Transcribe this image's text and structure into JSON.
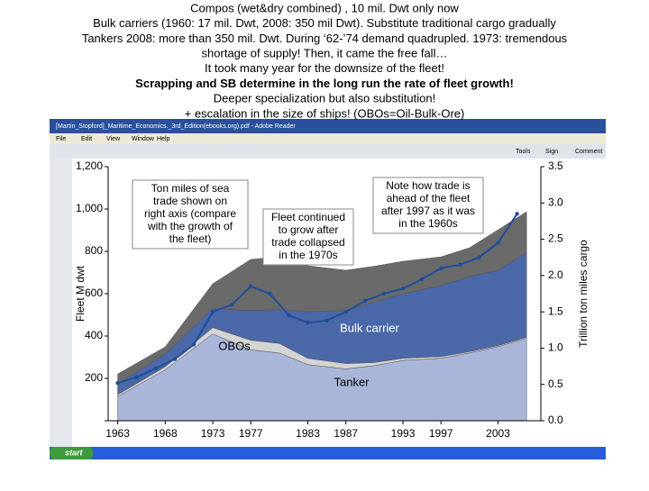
{
  "slide": {
    "lines": [
      "Compos (wet&dry combined) , 10 mil. Dwt only now",
      "Bulk carriers (1960: 17 mil. Dwt, 2008: 350 mil Dwt). Substitute traditional cargo gradually",
      "Tankers 2008: more than 350 mil. Dwt. During ‘62-’74 demand quadrupled. 1973: tremendous",
      "shortage of supply! Then, it came the free fall…",
      "It took many year for the downsize of the fleet!",
      "Scrapping and SB determine in the long run the rate of fleet growth!",
      "Deeper specialization but also substitution!",
      "+ escalation in the size of ships! (OBOs=Oil-Bulk-Ore)"
    ]
  },
  "window": {
    "title": "[Martin_Stopford]_Maritime_Economics._3rd_Edition(ebooks.org).pdf - Adobe Reader",
    "menu": [
      "File",
      "Edit",
      "View",
      "Window",
      "Help"
    ],
    "toolbar": [
      "Tools",
      "Sign",
      "Comment"
    ],
    "taskbar_start": "start"
  },
  "chart_data": {
    "type": "stacked_area_line",
    "ylabel": "Fleet M dwt",
    "y2label": "Trillion ton miles cargo",
    "xlim": [
      1962,
      2007.5
    ],
    "xticks": [
      1963,
      1968,
      1973,
      1977,
      1983,
      1987,
      1993,
      1997,
      2003
    ],
    "ylim": [
      0,
      1200
    ],
    "yticks": [
      0,
      200,
      400,
      600,
      800,
      {
        "value": 1000,
        "label": "1,000"
      },
      {
        "value": 1200,
        "label": "1,200"
      }
    ],
    "y2lim": [
      0,
      3.5
    ],
    "y2ticks": [
      {
        "value": 0,
        "label": "0.0"
      },
      0.5,
      {
        "value": 1,
        "label": "1.0"
      },
      1.5,
      {
        "value": 2,
        "label": "2.0"
      },
      2.5,
      {
        "value": 3,
        "label": "3.0"
      },
      3.5
    ],
    "x": [
      1963,
      1968,
      1973,
      1977,
      1980,
      1983,
      1987,
      1990,
      1993,
      1997,
      2000,
      2003,
      2006
    ],
    "series": [
      {
        "name": "Tanker",
        "color": "#a9b6da",
        "values": [
          115,
          240,
          410,
          335,
          320,
          265,
          245,
          260,
          285,
          295,
          320,
          350,
          390
        ]
      },
      {
        "name": "OBOs",
        "color": "#d4d4d4",
        "values": [
          8,
          15,
          30,
          45,
          45,
          30,
          25,
          15,
          10,
          8,
          6,
          5,
          5
        ]
      },
      {
        "name": "Bulk carrier",
        "color": "#4b68a8",
        "values": [
          50,
          60,
          90,
          140,
          160,
          220,
          250,
          285,
          305,
          335,
          355,
          355,
          400
        ]
      },
      {
        "color": "#6a6a6a",
        "values": [
          48,
          34,
          117,
          242,
          249,
          217,
          191,
          170,
          153,
          136,
          136,
          192,
          192
        ]
      }
    ],
    "trade": {
      "axis": "y2",
      "color": "#1f4e9a",
      "x": [
        1963,
        1965,
        1967,
        1969,
        1971,
        1973,
        1975,
        1977,
        1979,
        1981,
        1983,
        1985,
        1987,
        1989,
        1991,
        1993,
        1995,
        1997,
        1999,
        2001,
        2003,
        2005
      ],
      "values": [
        0.52,
        0.6,
        0.72,
        0.85,
        1.05,
        1.5,
        1.6,
        1.85,
        1.75,
        1.45,
        1.35,
        1.38,
        1.5,
        1.65,
        1.75,
        1.82,
        1.95,
        2.1,
        2.15,
        2.25,
        2.45,
        2.85
      ]
    },
    "annotations": [
      [
        "Ton miles of sea",
        "trade shown on",
        "right axis (compare",
        "with the growth of",
        "the fleet)"
      ],
      [
        "Fleet continued",
        "to grow after",
        "trade collapsed",
        "in the 1970s"
      ],
      [
        "Note how trade is",
        "ahead of the fleet",
        "after 1997 as it was",
        "in the 1960s"
      ]
    ]
  }
}
